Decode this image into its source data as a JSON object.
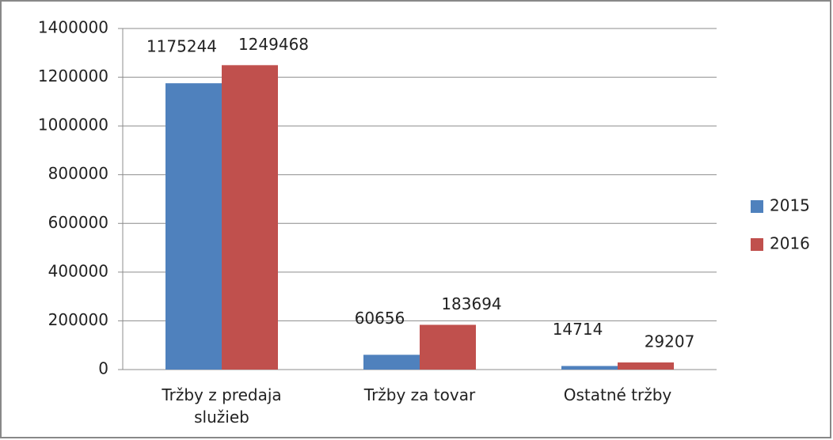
{
  "chart_data": {
    "type": "bar",
    "categories": [
      "Tržby z predaja služieb",
      "Tržby za tovar",
      "Ostatné tržby"
    ],
    "series": [
      {
        "name": "2015",
        "color": "#4f81bd",
        "values": [
          1175244,
          60656,
          14714
        ]
      },
      {
        "name": "2016",
        "color": "#c0504d",
        "values": [
          1249468,
          183694,
          29207
        ]
      }
    ],
    "ylim": [
      0,
      1400000
    ],
    "yticks": [
      0,
      200000,
      400000,
      600000,
      800000,
      1000000,
      1200000,
      1400000
    ],
    "grid": true,
    "legend": "right"
  }
}
